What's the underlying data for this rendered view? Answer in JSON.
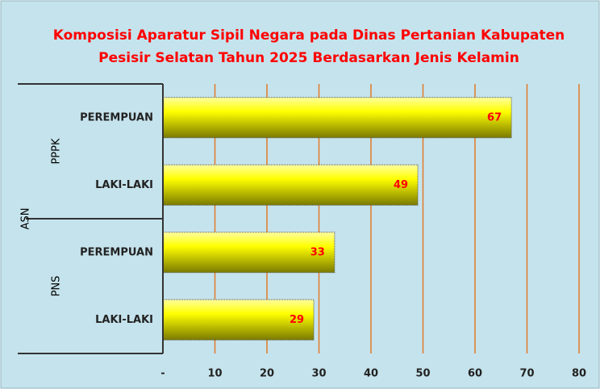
{
  "chart_data": {
    "type": "bar",
    "orientation": "horizontal",
    "title": [
      "Komposisi Aparatur Sipil Negara pada  Dinas Pertanian Kabupaten",
      "Pesisir Selatan Tahun 2025 Berdasarkan Jenis Kelamin"
    ],
    "outer_group": "ASN",
    "groups": [
      {
        "name": "PPPK",
        "categories": [
          "PEREMPUAN",
          "LAKI-LAKI"
        ],
        "values": [
          67,
          49
        ]
      },
      {
        "name": "PNS",
        "categories": [
          "PEREMPUAN",
          "LAKI-LAKI"
        ],
        "values": [
          33,
          29
        ]
      }
    ],
    "color": "#ffff00",
    "title_color": "#ff0000",
    "value_label_color": "#ff0000",
    "grid_color": "#e07b2a",
    "xlim": [
      0,
      80
    ],
    "xticks": [
      {
        "value": 0,
        "label": "-"
      },
      10,
      20,
      30,
      40,
      50,
      60,
      70,
      80
    ],
    "grid": true
  }
}
